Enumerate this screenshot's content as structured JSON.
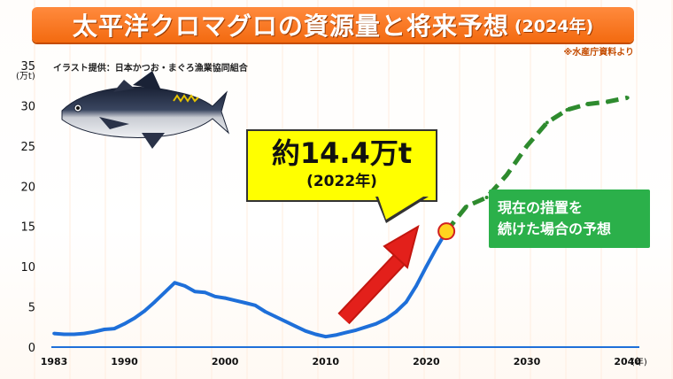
{
  "header": {
    "title": "太平洋クロマグロの資源量と将来予想",
    "title_year": "(2024年)",
    "source_note": "※水産庁資料より",
    "illustration_credit": "イラスト提供：日本かつお・まぐろ漁業協同組合"
  },
  "callout": {
    "value_text": "約14.4万t",
    "year_text": "(2022年)"
  },
  "forecast_label": {
    "line1": "現在の措置を",
    "line2": "続けた場合の予想"
  },
  "colors": {
    "title_bar": "#f36a10",
    "actual_line": "#1e6fd9",
    "forecast_line": "#2e8b2e",
    "arrow": "#e3201b",
    "callout_bg": "#ffff00",
    "forecast_box": "#2bb04a",
    "marker": "#ffd21f"
  },
  "chart_data": {
    "type": "line",
    "y_unit_label": "(万t)",
    "x_unit_label": "(年)",
    "xlim": [
      1983,
      2041
    ],
    "ylim": [
      0,
      35
    ],
    "x_ticks": [
      1983,
      1990,
      2000,
      2010,
      2020,
      2030,
      2040
    ],
    "y_ticks": [
      0,
      5,
      10,
      15,
      20,
      25,
      30,
      35
    ],
    "grid": false,
    "series": [
      {
        "style": "solid",
        "x": [
          1983,
          1984,
          1985,
          1986,
          1987,
          1988,
          1989,
          1990,
          1991,
          1992,
          1993,
          1994,
          1995,
          1996,
          1997,
          1998,
          1999,
          2000,
          2001,
          2002,
          2003,
          2004,
          2005,
          2006,
          2007,
          2008,
          2009,
          2010,
          2011,
          2012,
          2013,
          2014,
          2015,
          2016,
          2017,
          2018,
          2019,
          2020,
          2021,
          2022
        ],
        "y": [
          1.7,
          1.6,
          1.6,
          1.7,
          1.9,
          2.2,
          2.3,
          2.9,
          3.6,
          4.5,
          5.6,
          6.8,
          8.0,
          7.6,
          6.9,
          6.8,
          6.3,
          6.1,
          5.8,
          5.5,
          5.2,
          4.4,
          3.8,
          3.2,
          2.6,
          2.0,
          1.6,
          1.3,
          1.5,
          1.8,
          2.1,
          2.5,
          2.9,
          3.5,
          4.4,
          5.6,
          7.6,
          10.0,
          12.3,
          14.4
        ]
      },
      {
        "style": "dashed",
        "x": [
          2022,
          2024,
          2026,
          2028,
          2030,
          2032,
          2034,
          2036,
          2038,
          2040
        ],
        "y": [
          14.4,
          17.5,
          18.6,
          21.4,
          25.0,
          27.9,
          29.5,
          30.2,
          30.5,
          31.0
        ]
      }
    ],
    "highlight_point": {
      "x": 2022,
      "y": 14.4
    }
  }
}
